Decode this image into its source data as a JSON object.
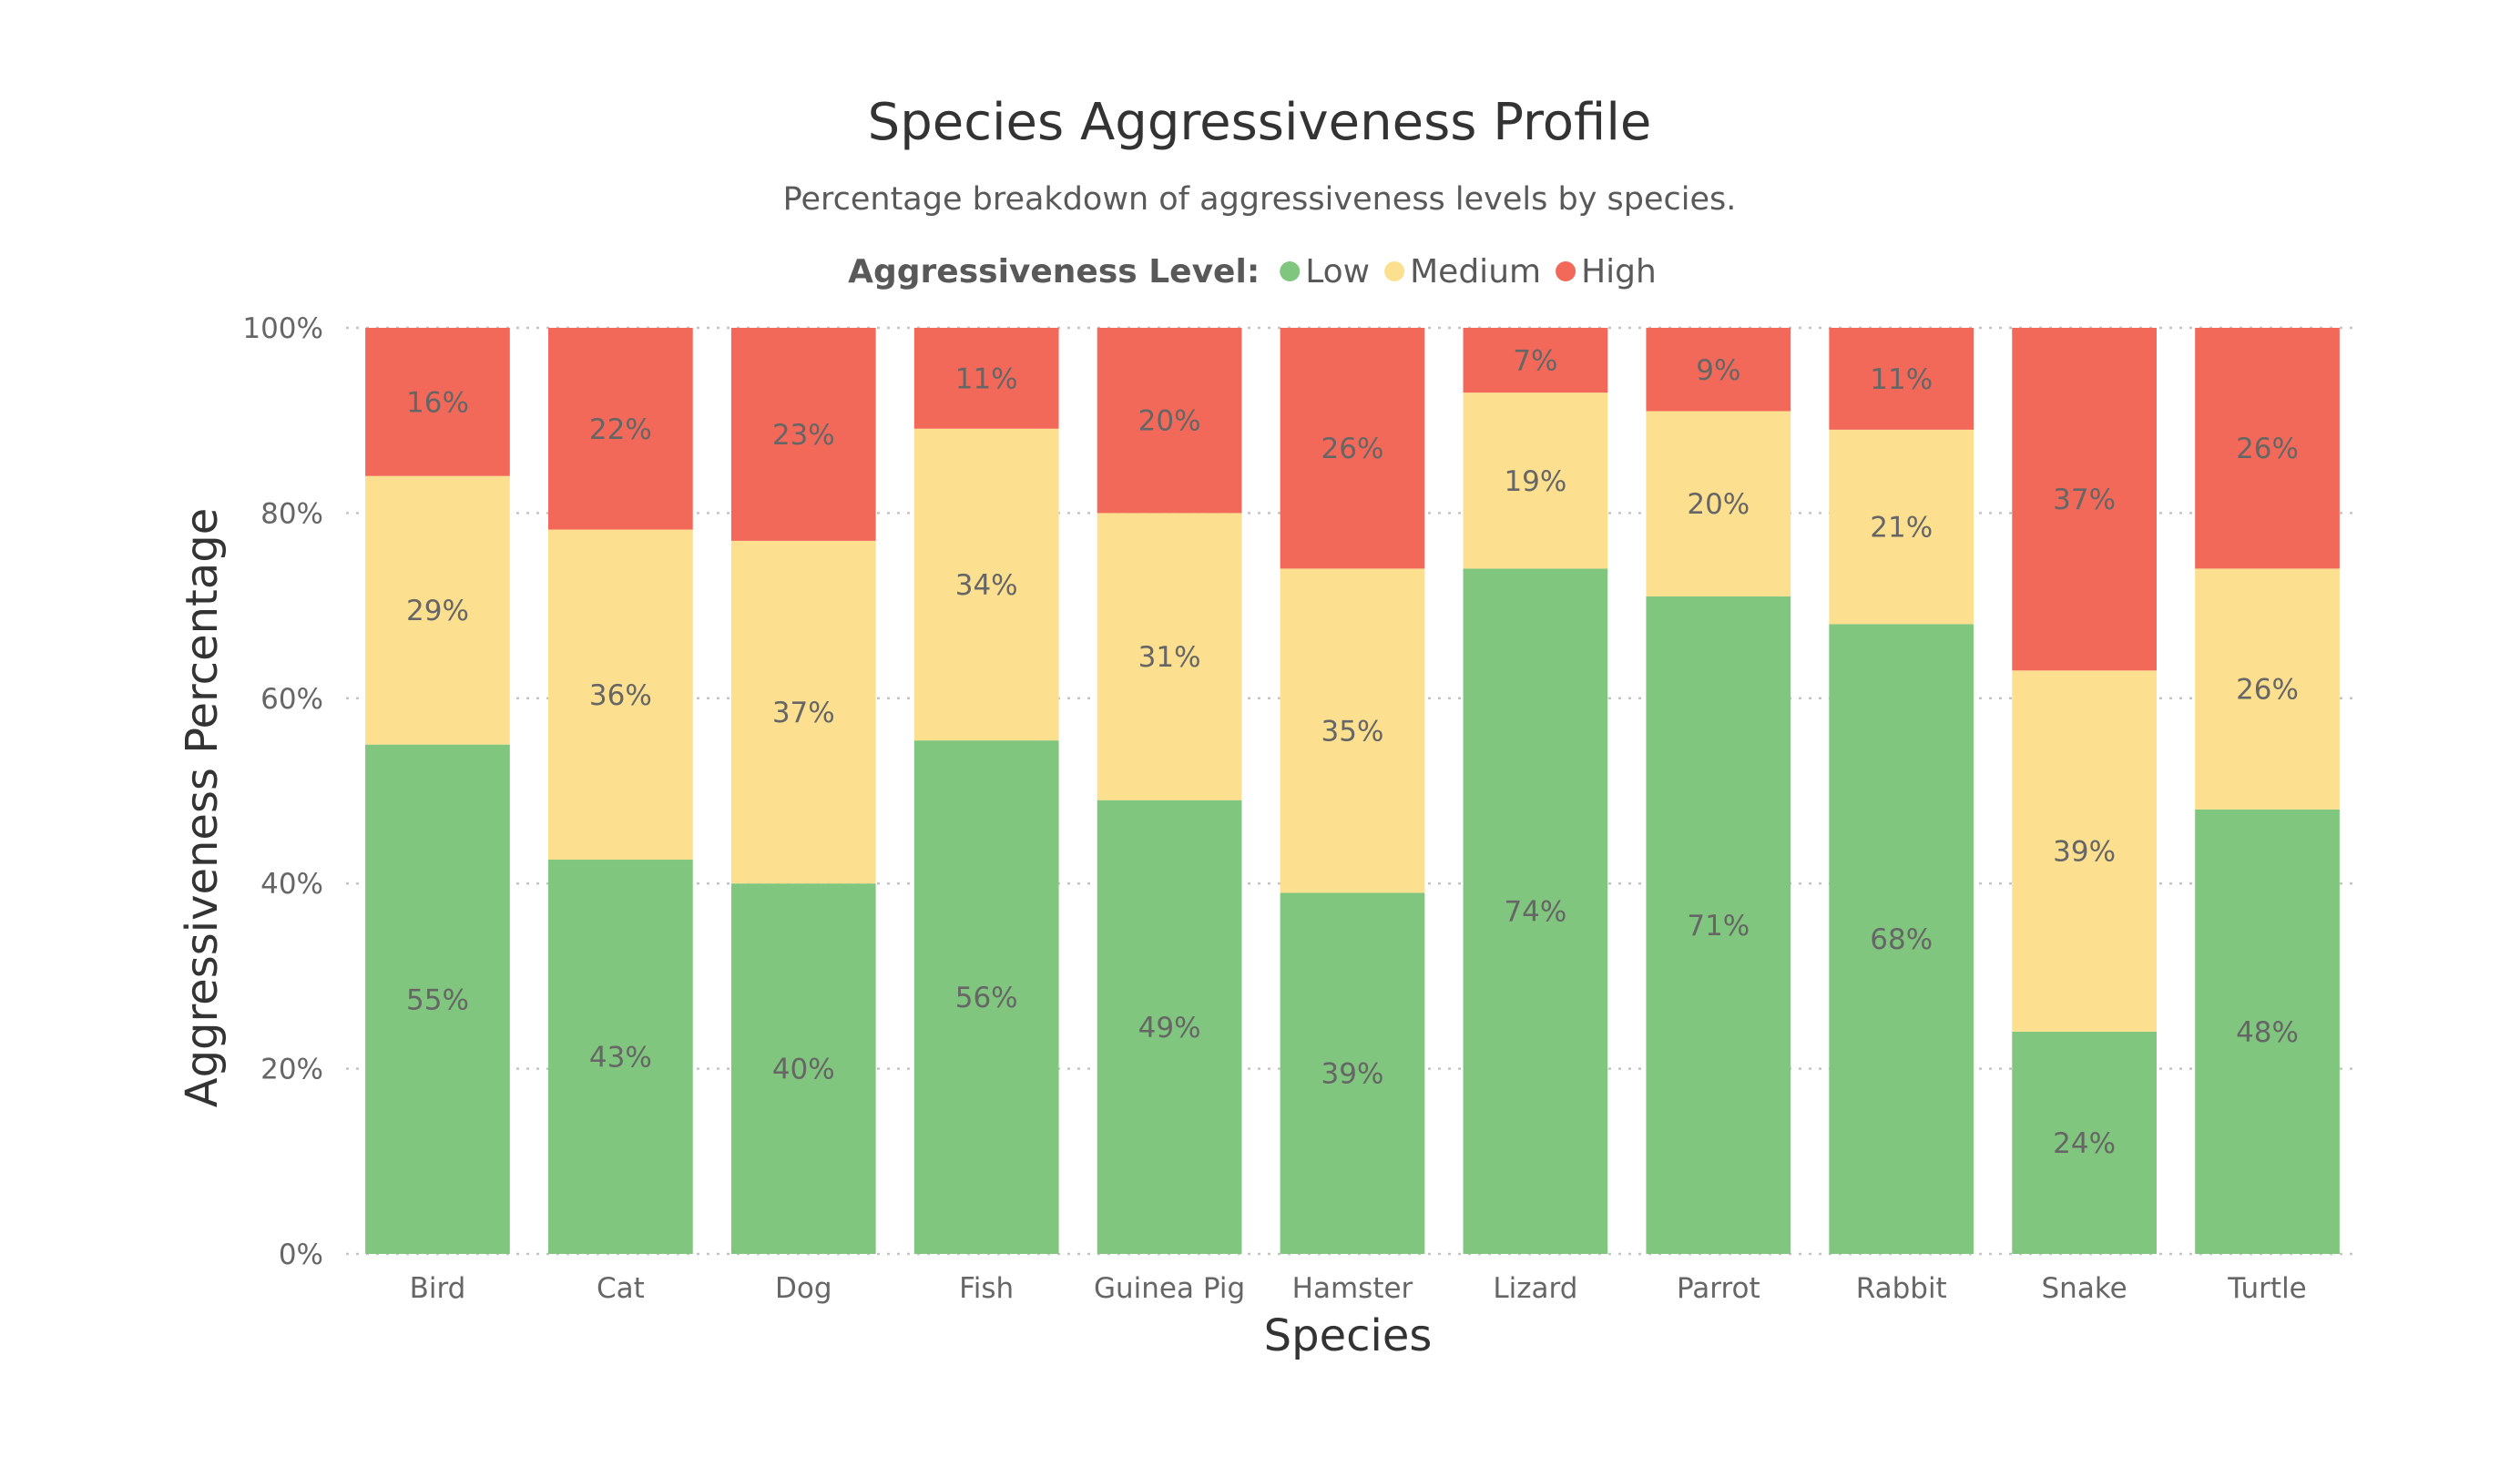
{
  "chart_data": {
    "type": "bar",
    "stacked": true,
    "normalized": true,
    "title": "Species Aggressiveness Profile",
    "subtitle": "Percentage breakdown of aggressiveness levels by species.",
    "xlabel": "Species",
    "ylabel": "Aggressiveness Percentage",
    "ylim": [
      0,
      100
    ],
    "yticks": [
      0,
      20,
      40,
      60,
      80,
      100
    ],
    "ytick_labels": [
      "0%",
      "20%",
      "40%",
      "60%",
      "80%",
      "100%"
    ],
    "grid": true,
    "legend": {
      "title": "Aggressiveness Level:",
      "placement": "top-center"
    },
    "categories": [
      "Bird",
      "Cat",
      "Dog",
      "Fish",
      "Guinea Pig",
      "Hamster",
      "Lizard",
      "Parrot",
      "Rabbit",
      "Snake",
      "Turtle"
    ],
    "series": [
      {
        "name": "Low",
        "color": "#80c67e",
        "values": [
          55,
          43,
          40,
          56,
          49,
          39,
          74,
          71,
          68,
          24,
          48
        ],
        "labels": [
          "55%",
          "43%",
          "40%",
          "56%",
          "49%",
          "39%",
          "74%",
          "71%",
          "68%",
          "24%",
          "48%"
        ]
      },
      {
        "name": "Medium",
        "color": "#fce08f",
        "values": [
          29,
          36,
          37,
          34,
          31,
          35,
          19,
          20,
          21,
          39,
          26
        ],
        "labels": [
          "29%",
          "36%",
          "37%",
          "34%",
          "31%",
          "35%",
          "19%",
          "20%",
          "21%",
          "39%",
          "26%"
        ]
      },
      {
        "name": "High",
        "color": "#f2695a",
        "values": [
          16,
          22,
          23,
          11,
          20,
          26,
          7,
          9,
          11,
          37,
          26
        ],
        "labels": [
          "16%",
          "22%",
          "23%",
          "11%",
          "20%",
          "26%",
          "7%",
          "9%",
          "11%",
          "37%",
          "26%"
        ]
      }
    ]
  }
}
